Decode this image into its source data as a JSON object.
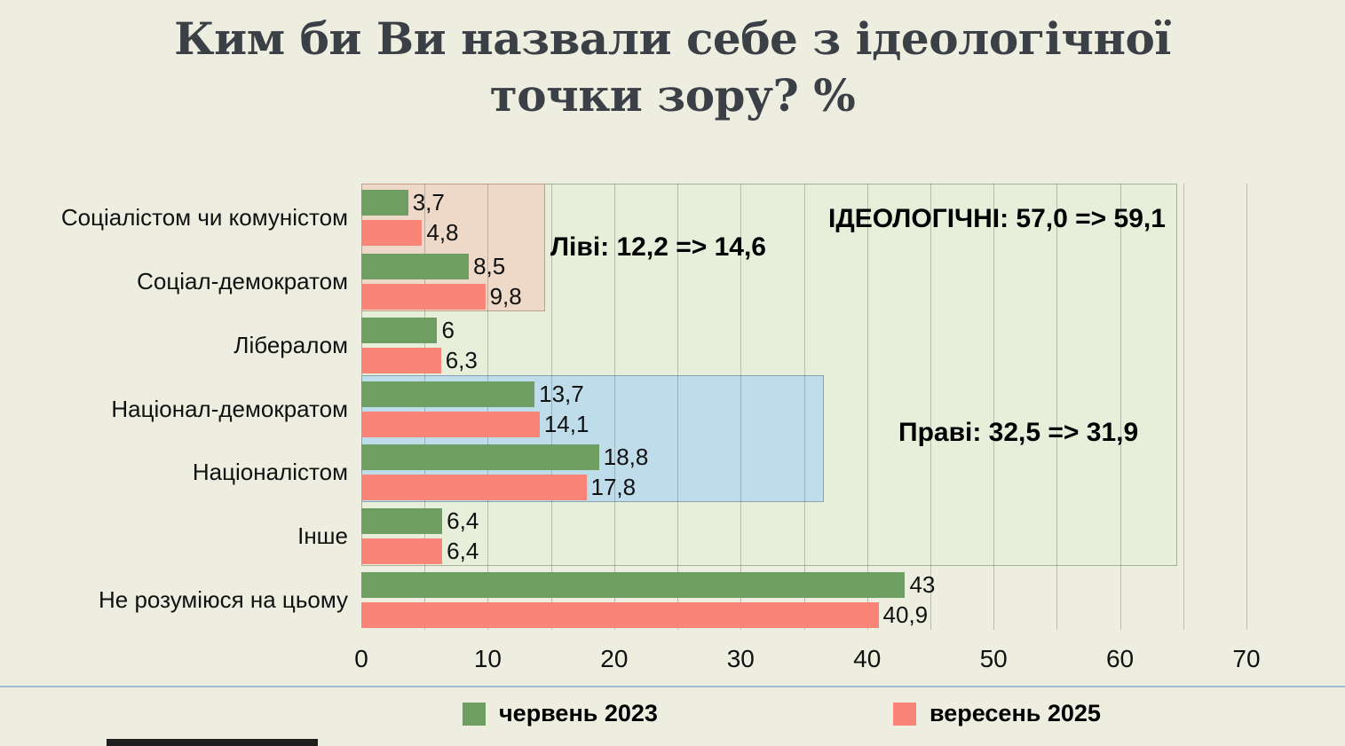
{
  "title": {
    "line1": "Ким би Ви назвали себе з ідеологічної",
    "line2": "точки зору? %"
  },
  "chart_data": {
    "type": "bar",
    "orientation": "horizontal",
    "title": "Ким би Ви назвали себе з ідеологічної точки зору? %",
    "xlim": [
      0,
      70
    ],
    "x_ticks": [
      "0",
      "10",
      "20",
      "30",
      "40",
      "50",
      "60",
      "70"
    ],
    "gridline_step": 5,
    "grid": true,
    "legend_position": "bottom",
    "categories": [
      "Соціалістом чи комуністом",
      "Соціал-демократом",
      "Лібералом",
      "Націонал-демократом",
      "Націоналістом",
      "Інше",
      "Не розуміюся на цьому"
    ],
    "series": [
      {
        "name": "червень 2023",
        "color": "#6f9e62",
        "values": [
          3.7,
          8.5,
          6,
          13.7,
          18.8,
          6.4,
          43
        ],
        "display": [
          "3,7",
          "8,5",
          "6",
          "13,7",
          "18,8",
          "6,4",
          "43"
        ]
      },
      {
        "name": "вересень 2025",
        "color": "#f98478",
        "values": [
          4.8,
          9.8,
          6.3,
          14.1,
          17.8,
          6.4,
          40.9
        ],
        "display": [
          "4,8",
          "9,8",
          "6,3",
          "14,1",
          "17,8",
          "6,4",
          "40,9"
        ]
      }
    ],
    "regions": [
      {
        "name": "ideological",
        "label": "ІДЕОЛОГІЧНІ: 57,0 => 59,1",
        "fill": "#e7efdb",
        "border": "#a4b29a",
        "x_start": 0,
        "x_end": 64.5,
        "rows": [
          0,
          5
        ]
      },
      {
        "name": "left-bloc",
        "label": "Ліві: 12,2 => 14,6",
        "fill": "#eed8c7",
        "border": "#bf9f8a",
        "x_start": 0,
        "x_end": 14.5,
        "rows": [
          0,
          1
        ]
      },
      {
        "name": "right-bloc",
        "label": "Праві: 32,5 => 31,9",
        "fill": "#bfdceb",
        "border": "#8aa3b2",
        "x_start": 0,
        "x_end": 36.6,
        "rows": [
          3,
          4
        ]
      }
    ]
  },
  "legend": {
    "items": [
      {
        "label": "червень 2023",
        "color": "#6f9e62"
      },
      {
        "label": "вересень 2025",
        "color": "#f98478"
      }
    ]
  }
}
